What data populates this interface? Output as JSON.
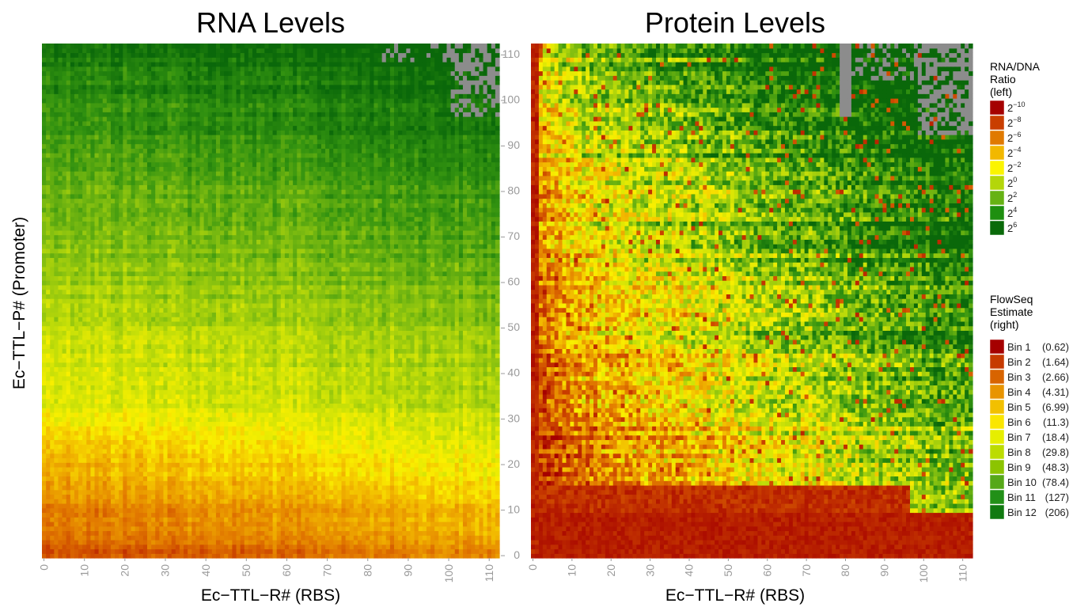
{
  "chart_data": [
    {
      "type": "heatmap",
      "title": "RNA Levels",
      "xlabel": "Ec−TTL−R# (RBS)",
      "ylabel": "Ec−TTL−P# (Promoter)",
      "x_ticks": [
        "0",
        "10",
        "20",
        "30",
        "40",
        "50",
        "60",
        "70",
        "80",
        "90",
        "100",
        "110"
      ],
      "xlim": [
        0,
        113
      ],
      "ylim": [
        0,
        113
      ],
      "color_scale": "RNA/DNA Ratio (left)",
      "missing_color": "#8c8c8c",
      "pattern": "low promoter numbers (bottom rows) show low RNA/DNA ratio (red/orange, ~2^-6 to 2^-4); ratio rises upward through yellow (~2^-2) to green (~2^2 to 2^4) at the top; some missing cells at top-right"
    },
    {
      "type": "heatmap",
      "title": "Protein Levels",
      "xlabel": "Ec−TTL−R# (RBS)",
      "y_ticks": [
        "0",
        "10",
        "20",
        "30",
        "40",
        "50",
        "60",
        "70",
        "80",
        "90",
        "100",
        "110"
      ],
      "x_ticks": [
        "0",
        "10",
        "20",
        "30",
        "40",
        "50",
        "60",
        "70",
        "80",
        "90",
        "100",
        "110"
      ],
      "xlim": [
        0,
        113
      ],
      "ylim": [
        0,
        113
      ],
      "color_scale": "FlowSeq Estimate (right)",
      "missing_color": "#8c8c8c",
      "pattern": "red (Bin 1-2) along the bottom rows and the first columns; yellow (Bin 5-7) through the middle; green (Bin 10-12) toward the upper right; missing cells at top-right"
    }
  ],
  "legend_rna": {
    "title_lines": [
      "RNA/DNA",
      "Ratio",
      "(left)"
    ],
    "entries": [
      {
        "base": "2",
        "exp": "−10",
        "color": "#a50000"
      },
      {
        "base": "2",
        "exp": "−8",
        "color": "#c93e00"
      },
      {
        "base": "2",
        "exp": "−6",
        "color": "#e07a00"
      },
      {
        "base": "2",
        "exp": "−4",
        "color": "#f2b800"
      },
      {
        "base": "2",
        "exp": "−2",
        "color": "#fbf400"
      },
      {
        "base": "2",
        "exp": "0",
        "color": "#b4d60a"
      },
      {
        "base": "2",
        "exp": "2",
        "color": "#66b214"
      },
      {
        "base": "2",
        "exp": "4",
        "color": "#1e8f10"
      },
      {
        "base": "2",
        "exp": "6",
        "color": "#0a6a0a"
      }
    ]
  },
  "legend_flowseq": {
    "title_lines": [
      "FlowSeq",
      "Estimate",
      "(right)"
    ],
    "entries": [
      {
        "label": "Bin 1",
        "value": "(0.62)",
        "color": "#a50000"
      },
      {
        "label": "Bin 2",
        "value": "(1.64)",
        "color": "#c63a00"
      },
      {
        "label": "Bin 3",
        "value": "(2.66)",
        "color": "#d86400"
      },
      {
        "label": "Bin 4",
        "value": "(4.31)",
        "color": "#e89400"
      },
      {
        "label": "Bin 5",
        "value": "(6.99)",
        "color": "#f2c000"
      },
      {
        "label": "Bin 6",
        "value": "(11.3)",
        "color": "#fae600"
      },
      {
        "label": "Bin 7",
        "value": "(18.4)",
        "color": "#e6ee00"
      },
      {
        "label": "Bin 8",
        "value": "(29.8)",
        "color": "#bcdc00"
      },
      {
        "label": "Bin 9",
        "value": "(48.3)",
        "color": "#8cc400"
      },
      {
        "label": "Bin 10",
        "value": "(78.4)",
        "color": "#56a818"
      },
      {
        "label": "Bin 11",
        "value": "(127)",
        "color": "#229018"
      },
      {
        "label": "Bin 12",
        "value": "(206)",
        "color": "#107a10"
      }
    ]
  }
}
